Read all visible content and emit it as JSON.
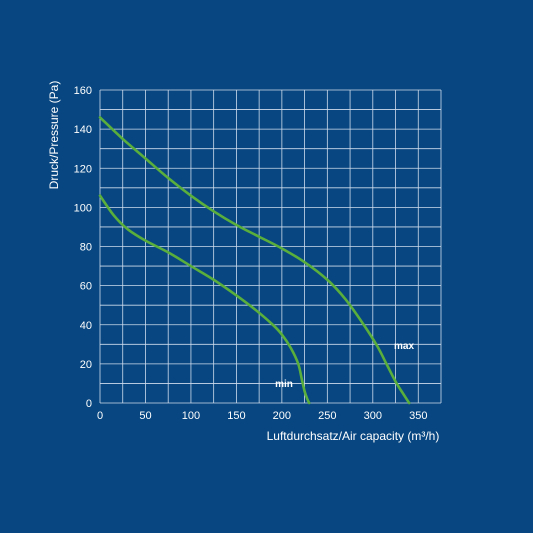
{
  "chart_data": {
    "type": "line",
    "xlabel": "Luftdurchsatz/Air capacity (m³/h)",
    "ylabel": "Druck/Pressure (Pa)",
    "xlim": [
      0,
      375
    ],
    "ylim": [
      0,
      160
    ],
    "x_ticks": [
      "0",
      "50",
      "100",
      "150",
      "200",
      "250",
      "300",
      "350"
    ],
    "y_ticks": [
      "0",
      "20",
      "40",
      "60",
      "80",
      "100",
      "120",
      "140",
      "160"
    ],
    "x_step": 50,
    "y_step": 20,
    "grid": true,
    "colors": {
      "background": "#074680",
      "grid": "#cfdced",
      "curve": "#5aaf3c",
      "text": "#ffffff"
    },
    "series": [
      {
        "name": "max",
        "x": [
          0,
          25,
          50,
          75,
          100,
          125,
          150,
          175,
          200,
          225,
          250,
          270,
          290,
          305,
          315,
          325,
          333,
          340
        ],
        "y": [
          146,
          135,
          125,
          115,
          106,
          98,
          91,
          85,
          79,
          72,
          63,
          53,
          40,
          29,
          20,
          11,
          5,
          0
        ]
      },
      {
        "name": "min",
        "x": [
          0,
          15,
          30,
          50,
          75,
          100,
          125,
          150,
          170,
          190,
          200,
          210,
          218,
          222,
          225,
          228,
          230
        ],
        "y": [
          106,
          96,
          89,
          83,
          77,
          70,
          63,
          55,
          48,
          40,
          35,
          28,
          20,
          12,
          6,
          2,
          0
        ]
      }
    ]
  }
}
